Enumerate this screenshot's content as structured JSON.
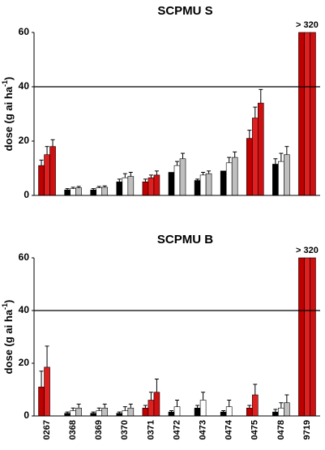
{
  "chart_data": [
    {
      "type": "bar",
      "title": "SCPMU S",
      "ylabel": "dose (g ai ha",
      "ylabel_sup": "-1",
      "ylabel_end": ")",
      "annotation": "> 320",
      "hline": 40,
      "ylim": [
        0,
        60
      ],
      "yticks": [
        0,
        20,
        40,
        60
      ],
      "series": [
        {
          "colors": [
            "#c00000",
            "#000000",
            "#000000",
            "#000000",
            "#c00000",
            "#000000",
            "#000000",
            "#000000",
            "#c00000",
            "#000000",
            "#c00000"
          ],
          "values": [
            11,
            2,
            2,
            5,
            5,
            8.5,
            5.5,
            9,
            21,
            11.5,
            60
          ],
          "errors": [
            2,
            0.5,
            0.5,
            1,
            1,
            0,
            0.5,
            0,
            3,
            2,
            0
          ]
        },
        {
          "colors": [
            "#e02020",
            "#ffffff",
            "#ffffff",
            "#ffffff",
            "#e02020",
            "#ffffff",
            "#ffffff",
            "#ffffff",
            "#e02020",
            "#ffffff",
            "#e02020"
          ],
          "values": [
            15,
            2.5,
            2.8,
            6.5,
            6.5,
            11,
            7.5,
            12,
            28.5,
            12.5,
            60
          ],
          "errors": [
            3,
            0.5,
            0.5,
            1.5,
            1,
            1.5,
            1,
            2,
            4,
            3,
            0
          ]
        },
        {
          "colors": [
            "#d01010",
            "#bfbfbf",
            "#bfbfbf",
            "#bfbfbf",
            "#d01010",
            "#bfbfbf",
            "#bfbfbf",
            "#bfbfbf",
            "#d01010",
            "#bfbfbf",
            "#d01010"
          ],
          "values": [
            18,
            2.8,
            3,
            7,
            7.5,
            13.5,
            8,
            14,
            34,
            15,
            60
          ],
          "errors": [
            2.5,
            0.5,
            0.5,
            1.5,
            1.5,
            2,
            1,
            2,
            5,
            3,
            0
          ]
        }
      ]
    },
    {
      "type": "bar",
      "title": "SCPMU B",
      "ylabel": "dose (g ai ha",
      "ylabel_sup": "-1",
      "ylabel_end": ")",
      "annotation": "> 320",
      "hline": 40,
      "ylim": [
        0,
        60
      ],
      "yticks": [
        0,
        20,
        40,
        60
      ],
      "categories": [
        "0267",
        "0368",
        "0369",
        "0370",
        "0371",
        "0472",
        "0473",
        "0474",
        "0475",
        "0478",
        "9719"
      ],
      "series": [
        {
          "colors": [
            "#c00000",
            "#000000",
            "#000000",
            "#000000",
            "#c00000",
            "#000000",
            "#000000",
            "#000000",
            "#c00000",
            "#000000",
            "#c00000"
          ],
          "values": [
            11,
            1,
            1,
            1,
            3,
            1.5,
            3,
            1.5,
            3,
            1.5,
            60
          ],
          "errors": [
            6,
            0.5,
            0.5,
            0.5,
            1,
            0.5,
            1,
            0.5,
            1,
            1,
            0
          ]
        },
        {
          "colors": [
            "#e02020",
            "#ffffff",
            "#ffffff",
            "#ffffff",
            "#e02020",
            "#ffffff",
            "#ffffff",
            "#ffffff",
            "#e02020",
            "#ffffff",
            "#e02020"
          ],
          "values": [
            18.5,
            2,
            2,
            2,
            6,
            3.5,
            6,
            3.5,
            8,
            3,
            60
          ],
          "errors": [
            8,
            1,
            1,
            1.5,
            3,
            2.5,
            3,
            2.5,
            4,
            2,
            0
          ]
        },
        {
          "colors": [
            "#d01010",
            "#bfbfbf",
            "#bfbfbf",
            "#bfbfbf",
            "#d01010",
            "#bfbfbf",
            "#bfbfbf",
            "#bfbfbf",
            "#d01010",
            "#bfbfbf",
            "#d01010"
          ],
          "values": [
            null,
            3,
            3,
            3,
            9,
            null,
            null,
            null,
            null,
            5,
            60
          ],
          "errors": [
            null,
            1.5,
            1.5,
            1.5,
            5,
            null,
            null,
            null,
            null,
            3,
            0
          ]
        }
      ]
    }
  ]
}
